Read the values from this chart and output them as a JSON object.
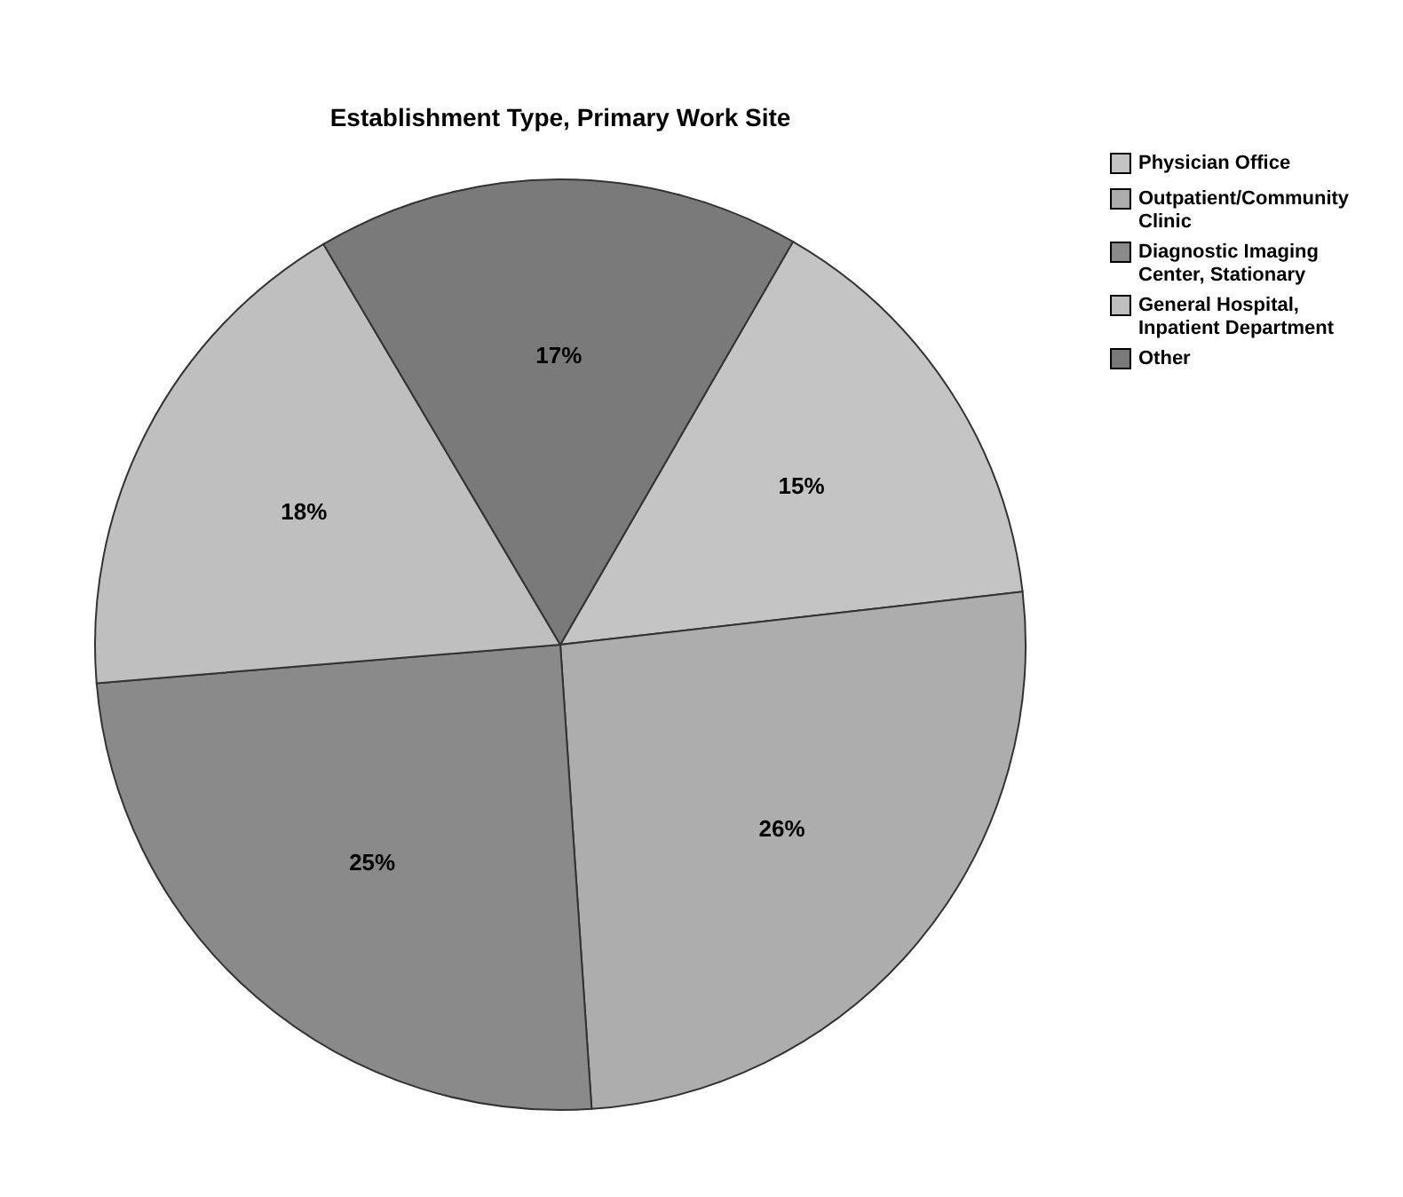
{
  "chart_data": {
    "type": "pie",
    "title": "Establishment Type, Primary Work Site",
    "categories": [
      "Physician Office",
      "Outpatient/Community Clinic",
      "Diagnostic Imaging Center, Stationary",
      "General Hospital, Inpatient Department",
      "Other"
    ],
    "values": [
      15,
      26,
      25,
      18,
      17
    ],
    "colors": [
      "#c4c4c4",
      "#adadad",
      "#8a8a8a",
      "#bfbfbf",
      "#7a7a7a"
    ],
    "value_labels": [
      "15%",
      "26%",
      "25%",
      "18%",
      "17%"
    ],
    "legend": "right"
  }
}
